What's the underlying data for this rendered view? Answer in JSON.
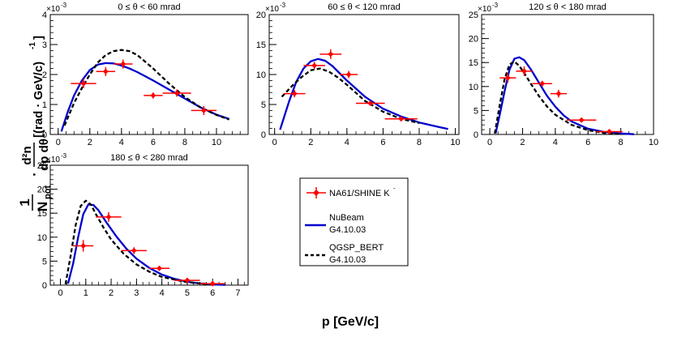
{
  "ylabel_prefix": "1",
  "ylabel_npot": "N",
  "ylabel_npot_sub": "pot",
  "ylabel_dot": "·",
  "ylabel_num": "d²n",
  "ylabel_den": "dp dθ",
  "ylabel_units": "[(rad · GeV/c)",
  "ylabel_units_exp": "-1",
  "ylabel_units_close": "]",
  "xlabel": "p [GeV/c]",
  "legend": {
    "data": {
      "line1": "NA61/SHINE K",
      "line1_sup": "-",
      "color": "#ff0000"
    },
    "nubeam": {
      "line1": "NuBeam",
      "line2": "G4.10.03",
      "color": "#0000cc"
    },
    "qgsp": {
      "line1": "QGSP_BERT",
      "line2": "G4.10.03",
      "color": "#000000"
    }
  },
  "chart_data": [
    {
      "type": "line",
      "title": "0 ≤ θ < 60 mrad",
      "exponent": "×10",
      "exponent_power": "-3",
      "xlim": [
        -0.5,
        12
      ],
      "ylim": [
        0,
        4
      ],
      "xticks": [
        0,
        2,
        4,
        6,
        8,
        10
      ],
      "yticks": [
        0,
        1,
        2,
        3,
        4
      ],
      "measurements": [
        {
          "x": 1.6,
          "xerr": 0.8,
          "y": 1.7,
          "yerr": 0.15
        },
        {
          "x": 3.0,
          "xerr": 0.6,
          "y": 2.1,
          "yerr": 0.15
        },
        {
          "x": 4.1,
          "xerr": 0.6,
          "y": 2.35,
          "yerr": 0.15
        },
        {
          "x": 6.0,
          "xerr": 0.6,
          "y": 1.3,
          "yerr": 0.1
        },
        {
          "x": 7.5,
          "xerr": 0.9,
          "y": 1.38,
          "yerr": 0.12
        },
        {
          "x": 9.2,
          "xerr": 0.8,
          "y": 0.8,
          "yerr": 0.15
        }
      ],
      "series": [
        {
          "name": "NuBeam G4.10.03",
          "x": [
            0.2,
            0.6,
            1.0,
            1.5,
            2.0,
            2.5,
            3.0,
            3.5,
            4.0,
            4.5,
            5.0,
            6.0,
            7.0,
            8.0,
            9.0,
            10.0,
            10.8
          ],
          "y": [
            0.1,
            0.75,
            1.3,
            1.8,
            2.15,
            2.33,
            2.38,
            2.37,
            2.3,
            2.2,
            2.08,
            1.8,
            1.5,
            1.2,
            0.9,
            0.66,
            0.52
          ]
        },
        {
          "name": "QGSP_BERT G4.10.03",
          "x": [
            0.4,
            1.0,
            1.5,
            2.0,
            2.5,
            3.0,
            3.5,
            4.0,
            4.5,
            5.0,
            6.0,
            7.0,
            8.0,
            9.0,
            10.0,
            10.8
          ],
          "y": [
            0.3,
            1.05,
            1.55,
            2.0,
            2.4,
            2.65,
            2.78,
            2.82,
            2.78,
            2.65,
            2.2,
            1.7,
            1.25,
            0.9,
            0.65,
            0.5
          ]
        }
      ]
    },
    {
      "type": "line",
      "title": "60 ≤ θ < 120 mrad",
      "exponent": "×10",
      "exponent_power": "-3",
      "xlim": [
        -0.3,
        10.2
      ],
      "ylim": [
        0,
        20
      ],
      "xticks": [
        0,
        2,
        4,
        6,
        8,
        10
      ],
      "yticks": [
        0,
        5,
        10,
        15,
        20
      ],
      "measurements": [
        {
          "x": 1.1,
          "xerr": 0.6,
          "y": 6.8,
          "yerr": 0.6
        },
        {
          "x": 2.2,
          "xerr": 0.6,
          "y": 11.5,
          "yerr": 0.6
        },
        {
          "x": 3.1,
          "xerr": 0.6,
          "y": 13.4,
          "yerr": 0.8
        },
        {
          "x": 4.1,
          "xerr": 0.5,
          "y": 10.0,
          "yerr": 0.6
        },
        {
          "x": 5.3,
          "xerr": 0.8,
          "y": 5.2,
          "yerr": 0.4
        },
        {
          "x": 7.0,
          "xerr": 0.9,
          "y": 2.6,
          "yerr": 0.3
        }
      ],
      "series": [
        {
          "name": "NuBeam G4.10.03",
          "x": [
            0.3,
            0.8,
            1.2,
            1.6,
            2.0,
            2.4,
            2.8,
            3.2,
            3.6,
            4.0,
            5.0,
            6.0,
            7.0,
            8.0,
            9.0,
            9.6
          ],
          "y": [
            0.8,
            5.5,
            8.8,
            11.0,
            12.2,
            12.6,
            12.3,
            11.4,
            10.2,
            9.0,
            6.3,
            4.3,
            3.0,
            2.0,
            1.3,
            0.9
          ]
        },
        {
          "name": "QGSP_BERT G4.10.03",
          "x": [
            0.4,
            1.0,
            1.5,
            2.0,
            2.5,
            3.0,
            3.5,
            4.0,
            5.0,
            6.0,
            7.0,
            8.0
          ],
          "y": [
            6.3,
            8.2,
            9.6,
            10.7,
            11.0,
            10.5,
            9.5,
            8.3,
            5.6,
            3.8,
            2.6,
            1.9
          ]
        }
      ]
    },
    {
      "type": "line",
      "title": "120 ≤ θ < 180 mrad",
      "exponent": "×10",
      "exponent_power": "-3",
      "xlim": [
        -0.5,
        10
      ],
      "ylim": [
        0,
        25
      ],
      "xticks": [
        0,
        2,
        4,
        6,
        8,
        10
      ],
      "yticks": [
        0,
        5,
        10,
        15,
        20,
        25
      ],
      "measurements": [
        {
          "x": 1.1,
          "xerr": 0.5,
          "y": 11.8,
          "yerr": 1.0
        },
        {
          "x": 2.1,
          "xerr": 0.5,
          "y": 13.2,
          "yerr": 1.0
        },
        {
          "x": 3.2,
          "xerr": 0.6,
          "y": 10.6,
          "yerr": 0.6
        },
        {
          "x": 4.2,
          "xerr": 0.5,
          "y": 8.5,
          "yerr": 0.8
        },
        {
          "x": 5.6,
          "xerr": 0.9,
          "y": 3.0,
          "yerr": 0.3
        },
        {
          "x": 7.3,
          "xerr": 0.8,
          "y": 0.6,
          "yerr": 0.2
        }
      ],
      "series": [
        {
          "name": "NuBeam G4.10.03",
          "x": [
            0.35,
            0.6,
            0.9,
            1.2,
            1.5,
            1.8,
            2.1,
            2.5,
            3.0,
            3.5,
            4.0,
            4.5,
            5.0,
            6.0,
            7.0,
            8.0,
            8.8
          ],
          "y": [
            0.2,
            4.0,
            9.0,
            13.5,
            15.8,
            16.1,
            15.5,
            13.6,
            10.8,
            8.0,
            5.8,
            4.0,
            2.7,
            1.2,
            0.5,
            0.2,
            0.05
          ]
        },
        {
          "name": "QGSP_BERT G4.10.03",
          "x": [
            0.3,
            0.6,
            0.9,
            1.2,
            1.5,
            1.8,
            2.1,
            2.5,
            3.0,
            3.5,
            4.0,
            5.0,
            6.0,
            7.0,
            8.0
          ],
          "y": [
            0.2,
            6.0,
            11.5,
            14.6,
            15.2,
            14.3,
            12.8,
            10.6,
            8.0,
            5.8,
            4.1,
            2.0,
            0.9,
            0.3,
            0.1
          ]
        }
      ]
    },
    {
      "type": "line",
      "title": "180 ≤ θ < 280 mrad",
      "exponent": "×10",
      "exponent_power": "-3",
      "xlim": [
        -0.4,
        7.4
      ],
      "ylim": [
        0,
        25
      ],
      "xticks": [
        0,
        1,
        2,
        3,
        4,
        5,
        6,
        7
      ],
      "yticks": [
        0,
        5,
        10,
        15,
        20,
        25
      ],
      "measurements": [
        {
          "x": 0.9,
          "xerr": 0.4,
          "y": 8.2,
          "yerr": 1.2
        },
        {
          "x": 1.9,
          "xerr": 0.5,
          "y": 14.2,
          "yerr": 1.0
        },
        {
          "x": 2.9,
          "xerr": 0.5,
          "y": 7.2,
          "yerr": 0.7
        },
        {
          "x": 3.9,
          "xerr": 0.4,
          "y": 3.5,
          "yerr": 0.4
        },
        {
          "x": 5.0,
          "xerr": 0.5,
          "y": 1.0,
          "yerr": 0.2
        },
        {
          "x": 6.0,
          "xerr": 0.5,
          "y": 0.3,
          "yerr": 0.1
        }
      ],
      "series": [
        {
          "name": "NuBeam G4.10.03",
          "x": [
            0.3,
            0.5,
            0.7,
            0.9,
            1.1,
            1.3,
            1.5,
            1.8,
            2.2,
            2.6,
            3.0,
            3.5,
            4.0,
            4.5,
            5.0,
            5.5,
            6.0,
            6.5
          ],
          "y": [
            0.3,
            4.5,
            10.0,
            14.8,
            16.8,
            16.7,
            15.6,
            13.2,
            10.2,
            7.6,
            5.5,
            3.6,
            2.2,
            1.3,
            0.7,
            0.35,
            0.15,
            0.05
          ]
        },
        {
          "name": "QGSP_BERT G4.10.03",
          "x": [
            0.2,
            0.4,
            0.6,
            0.8,
            1.0,
            1.2,
            1.4,
            1.7,
            2.0,
            2.5,
            3.0,
            3.5,
            4.0,
            5.0,
            6.0
          ],
          "y": [
            0.2,
            6.0,
            12.5,
            16.5,
            17.6,
            16.8,
            14.8,
            12.0,
            9.5,
            6.5,
            4.3,
            2.8,
            1.7,
            0.6,
            0.1
          ]
        }
      ]
    }
  ]
}
